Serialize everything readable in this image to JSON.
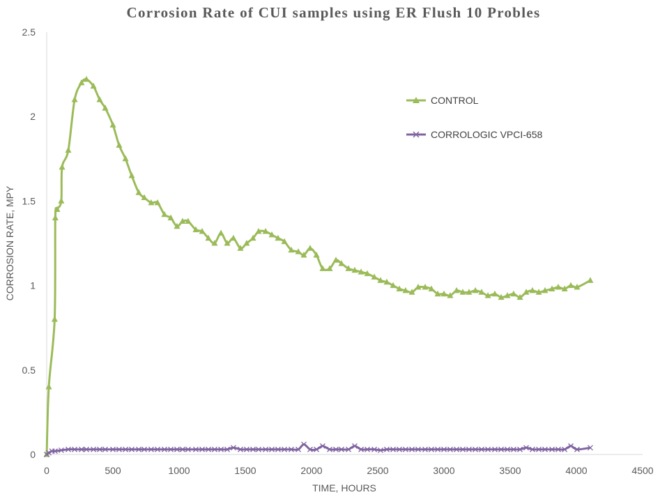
{
  "chart_data": {
    "type": "line",
    "title": "Corrosion Rate of CUI samples using ER Flush 10 Probles",
    "xlabel": "TIME, HOURS",
    "ylabel": "CORROSION RATE, MPY",
    "xlim": [
      0,
      4500
    ],
    "ylim": [
      0,
      2.5
    ],
    "xticks": [
      "0",
      "500",
      "1000",
      "1500",
      "2000",
      "2500",
      "3000",
      "3500",
      "4000",
      "4500"
    ],
    "yticks": [
      "0",
      "0.5",
      "1",
      "1.5",
      "2",
      "2.5"
    ],
    "grid": false,
    "legend_position": "top-right",
    "series": [
      {
        "name": "CONTROL",
        "color": "#9BBB59",
        "marker": "triangle",
        "x": [
          0,
          16,
          60,
          65,
          79,
          110,
          116,
          163,
          211,
          263,
          300,
          353,
          400,
          442,
          500,
          547,
          595,
          642,
          695,
          737,
          789,
          837,
          889,
          937,
          984,
          1026,
          1068,
          1126,
          1174,
          1221,
          1268,
          1316,
          1363,
          1410,
          1463,
          1510,
          1558,
          1600,
          1653,
          1700,
          1747,
          1795,
          1847,
          1900,
          1942,
          1989,
          2037,
          2084,
          2137,
          2184,
          2226,
          2279,
          2326,
          2374,
          2421,
          2474,
          2521,
          2568,
          2616,
          2663,
          2710,
          2758,
          2805,
          2858,
          2905,
          2953,
          3000,
          3047,
          3095,
          3142,
          3189,
          3237,
          3284,
          3332,
          3384,
          3432,
          3479,
          3526,
          3574,
          3621,
          3668,
          3716,
          3763,
          3816,
          3863,
          3911,
          3958,
          4005,
          4105
        ],
        "y": [
          0,
          0.4,
          0.8,
          1.4,
          1.45,
          1.5,
          1.7,
          1.8,
          2.1,
          2.2,
          2.22,
          2.18,
          2.1,
          2.05,
          1.95,
          1.83,
          1.75,
          1.65,
          1.55,
          1.52,
          1.49,
          1.49,
          1.42,
          1.4,
          1.35,
          1.38,
          1.38,
          1.33,
          1.32,
          1.28,
          1.25,
          1.31,
          1.25,
          1.28,
          1.22,
          1.25,
          1.28,
          1.32,
          1.32,
          1.3,
          1.28,
          1.26,
          1.21,
          1.2,
          1.18,
          1.22,
          1.18,
          1.1,
          1.1,
          1.15,
          1.13,
          1.1,
          1.09,
          1.08,
          1.07,
          1.05,
          1.03,
          1.02,
          1.0,
          0.98,
          0.97,
          0.96,
          0.99,
          0.99,
          0.98,
          0.95,
          0.95,
          0.94,
          0.97,
          0.96,
          0.96,
          0.97,
          0.96,
          0.94,
          0.95,
          0.93,
          0.94,
          0.95,
          0.93,
          0.96,
          0.97,
          0.96,
          0.97,
          0.98,
          0.99,
          0.98,
          1.0,
          0.99,
          1.03
        ]
      },
      {
        "name": "CORROLOGIC VPCI-658",
        "color": "#8064A2",
        "marker": "x",
        "x": [
          0,
          16,
          40,
          63,
          110,
          163,
          211,
          263,
          300,
          353,
          400,
          442,
          500,
          547,
          595,
          642,
          695,
          737,
          789,
          837,
          889,
          937,
          984,
          1026,
          1068,
          1126,
          1174,
          1221,
          1268,
          1316,
          1363,
          1410,
          1463,
          1510,
          1558,
          1600,
          1653,
          1700,
          1747,
          1795,
          1847,
          1900,
          1942,
          1989,
          2037,
          2084,
          2137,
          2184,
          2226,
          2279,
          2326,
          2374,
          2421,
          2474,
          2521,
          2568,
          2616,
          2663,
          2710,
          2758,
          2805,
          2858,
          2905,
          2953,
          3000,
          3047,
          3095,
          3142,
          3189,
          3237,
          3284,
          3332,
          3384,
          3432,
          3479,
          3526,
          3574,
          3621,
          3668,
          3716,
          3763,
          3816,
          3863,
          3911,
          3958,
          4005,
          4105
        ],
        "y": [
          0,
          0.01,
          0.02,
          0.02,
          0.025,
          0.03,
          0.03,
          0.03,
          0.03,
          0.03,
          0.03,
          0.03,
          0.03,
          0.03,
          0.03,
          0.03,
          0.03,
          0.03,
          0.03,
          0.03,
          0.03,
          0.03,
          0.03,
          0.03,
          0.03,
          0.03,
          0.03,
          0.03,
          0.03,
          0.03,
          0.03,
          0.04,
          0.03,
          0.03,
          0.03,
          0.03,
          0.03,
          0.03,
          0.03,
          0.03,
          0.03,
          0.03,
          0.06,
          0.03,
          0.03,
          0.05,
          0.03,
          0.03,
          0.03,
          0.03,
          0.05,
          0.03,
          0.03,
          0.03,
          0.025,
          0.03,
          0.03,
          0.03,
          0.03,
          0.03,
          0.03,
          0.03,
          0.03,
          0.03,
          0.03,
          0.03,
          0.03,
          0.03,
          0.03,
          0.03,
          0.03,
          0.03,
          0.03,
          0.03,
          0.03,
          0.03,
          0.03,
          0.04,
          0.03,
          0.03,
          0.03,
          0.03,
          0.03,
          0.03,
          0.05,
          0.03,
          0.04
        ]
      }
    ]
  }
}
